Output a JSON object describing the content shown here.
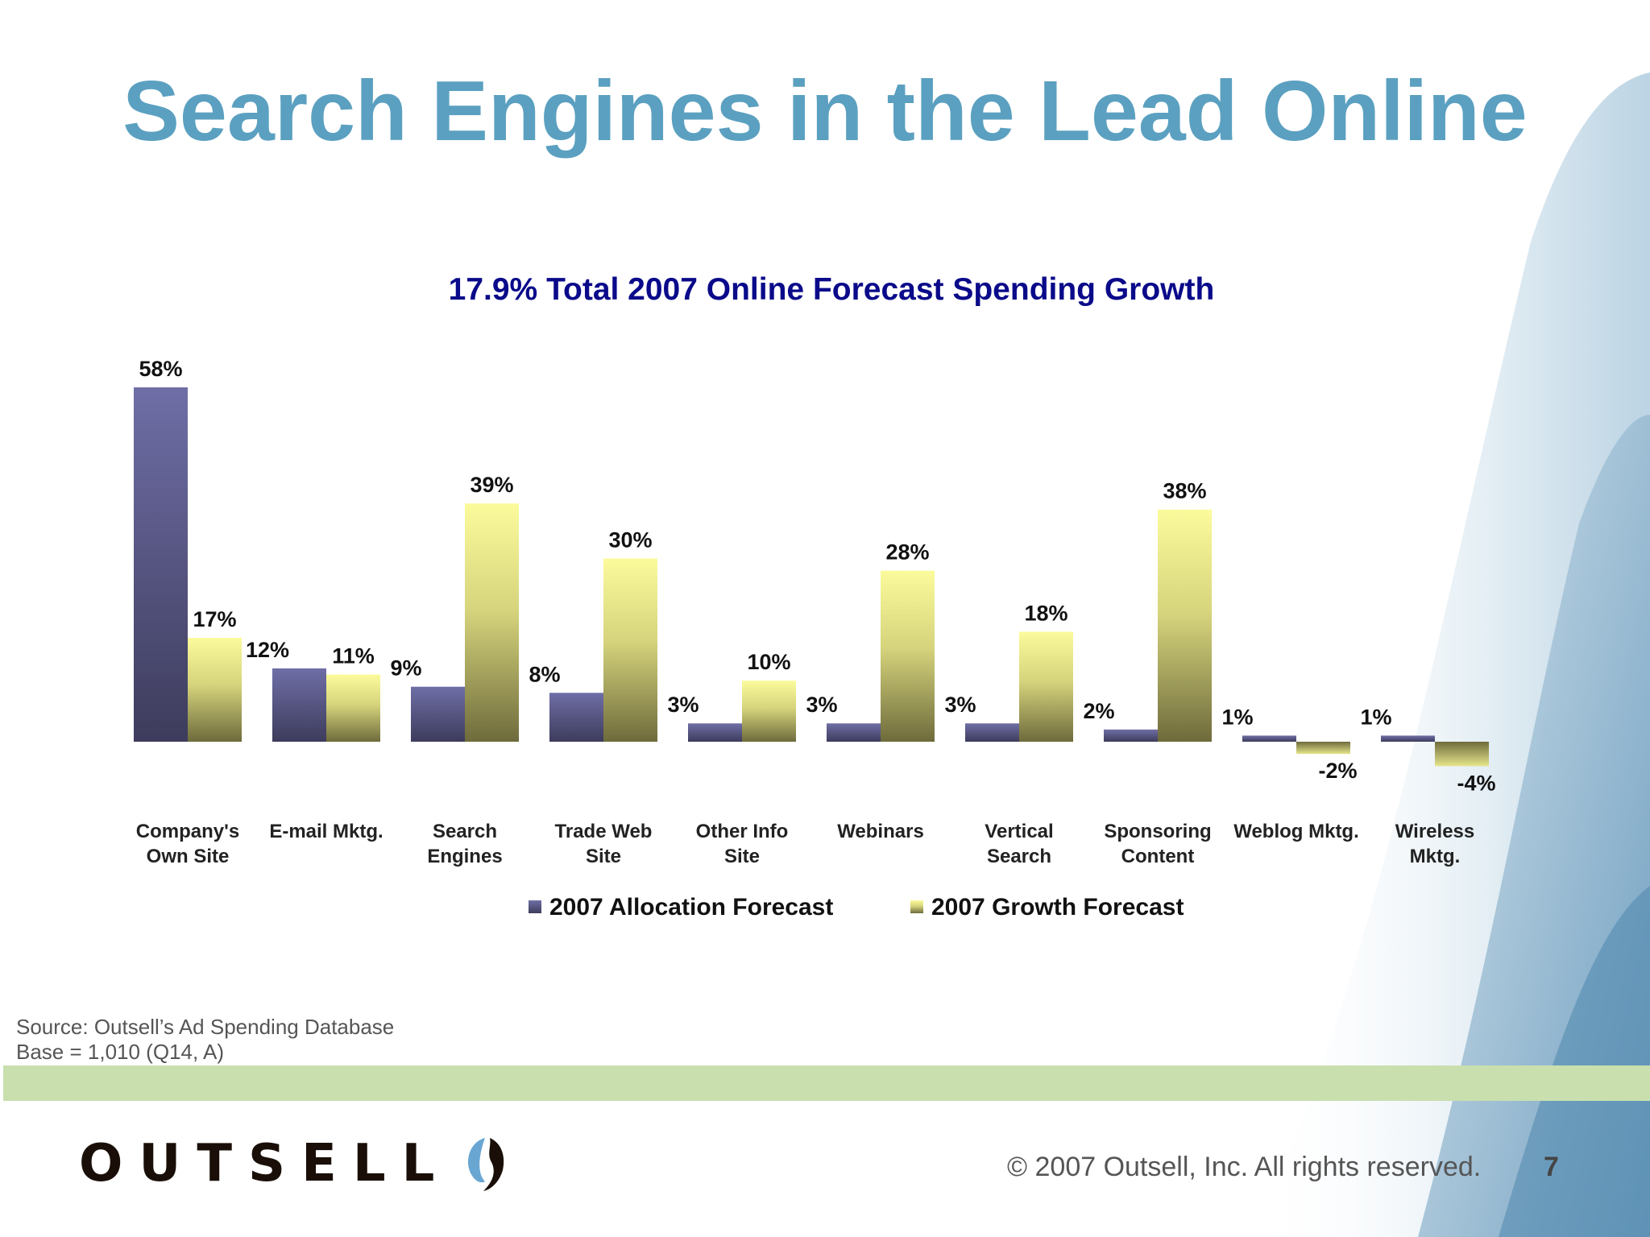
{
  "slide": {
    "title": "Search Engines in the Lead Online",
    "source_line1": "Source:  Outsell’s Ad Spending Database",
    "source_line2": "Base = 1,010 (Q14, A)",
    "logo_text": "OUTSELL",
    "copyright": "© 2007 Outsell, Inc. All rights reserved.",
    "page_number": "7"
  },
  "colors": {
    "title": "#5ba0c0",
    "chart_title": "#0a0a8a",
    "allocation_series": "#6a6a9c",
    "growth_series": "#f2f29a",
    "band": "#c9dfae"
  },
  "chart_data": {
    "type": "bar",
    "title": "17.9% Total 2007 Online Forecast Spending Growth",
    "categories": [
      [
        "Company's",
        "Own Site"
      ],
      [
        "E-mail Mktg."
      ],
      [
        "Search",
        "Engines"
      ],
      [
        "Trade Web",
        "Site"
      ],
      [
        "Other Info",
        "Site"
      ],
      [
        "Webinars"
      ],
      [
        "Vertical",
        "Search"
      ],
      [
        "Sponsoring",
        "Content"
      ],
      [
        "Weblog Mktg."
      ],
      [
        "Wireless",
        "Mktg."
      ]
    ],
    "series": [
      {
        "name": "2007 Allocation Forecast",
        "values": [
          58,
          12,
          9,
          8,
          3,
          3,
          3,
          2,
          1,
          1
        ],
        "labels": [
          "58%",
          "12%",
          "9%",
          "8%",
          "3%",
          "3%",
          "3%",
          "2%",
          "1%",
          "1%"
        ]
      },
      {
        "name": "2007 Growth Forecast",
        "values": [
          17,
          11,
          39,
          30,
          10,
          28,
          18,
          38,
          -2,
          -4
        ],
        "labels": [
          "17%",
          "11%",
          "39%",
          "30%",
          "10%",
          "28%",
          "18%",
          "38%",
          "-2%",
          "-4%"
        ]
      }
    ],
    "ylim": [
      -4,
      58
    ],
    "grid": false,
    "legend": "bottom"
  }
}
